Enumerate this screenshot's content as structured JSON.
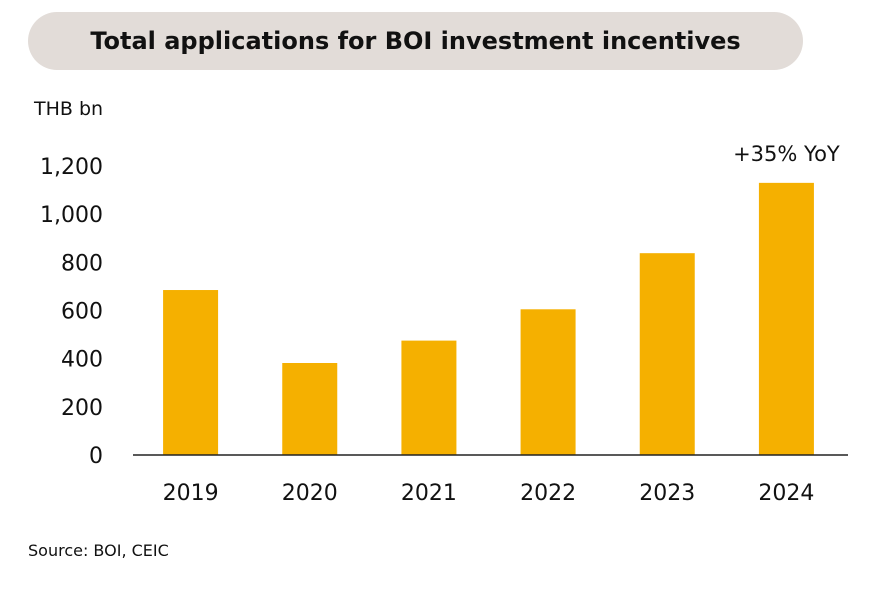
{
  "chart_data": {
    "type": "bar",
    "title": "Total applications for BOI investment incentives",
    "ylabel": "THB bn",
    "xlabel": "",
    "categories": [
      "2019",
      "2020",
      "2021",
      "2022",
      "2023",
      "2024"
    ],
    "values": [
      685,
      382,
      475,
      605,
      838,
      1130
    ],
    "ylim": [
      0,
      1200
    ],
    "yticks": [
      0,
      200,
      400,
      600,
      800,
      1000,
      1200
    ],
    "ytick_labels": [
      "0",
      "200",
      "400",
      "600",
      "800",
      "1,000",
      "1,200"
    ],
    "annotations": [
      {
        "category": "2024",
        "text": "+35% YoY"
      }
    ],
    "grid": false,
    "legend": "none",
    "bar_color": "#f5b000"
  },
  "source": "Source: BOI, CEIC"
}
